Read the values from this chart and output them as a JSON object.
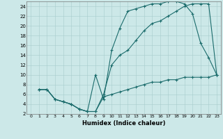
{
  "xlabel": "Humidex (Indice chaleur)",
  "ylabel": "",
  "bg_color": "#cce8e8",
  "line_color": "#1a6b6b",
  "xlim": [
    -0.5,
    23.5
  ],
  "ylim": [
    2,
    25
  ],
  "xticks": [
    0,
    1,
    2,
    3,
    4,
    5,
    6,
    7,
    8,
    9,
    10,
    11,
    12,
    13,
    14,
    15,
    16,
    17,
    18,
    19,
    20,
    21,
    22,
    23
  ],
  "yticks": [
    2,
    4,
    6,
    8,
    10,
    12,
    14,
    16,
    18,
    20,
    22,
    24
  ],
  "line1_x": [
    1,
    2,
    3,
    4,
    5,
    6,
    7,
    8,
    9,
    10,
    11,
    12,
    13,
    14,
    15,
    16,
    17,
    18,
    19,
    20,
    21,
    22,
    23
  ],
  "line1_y": [
    7,
    7,
    5,
    4.5,
    4,
    3,
    2.5,
    10,
    5,
    15,
    19.5,
    23,
    23.5,
    24,
    24.5,
    24.5,
    25,
    25,
    24.5,
    22.5,
    16.5,
    13.5,
    10
  ],
  "line2_x": [
    1,
    2,
    3,
    4,
    5,
    6,
    7,
    8,
    9,
    10,
    11,
    12,
    13,
    14,
    15,
    16,
    17,
    18,
    19,
    20,
    21,
    22,
    23
  ],
  "line2_y": [
    7,
    7,
    5,
    4.5,
    4,
    3,
    2.5,
    2.5,
    6,
    12,
    14,
    15,
    17,
    19,
    20.5,
    21,
    22,
    23,
    24,
    24.5,
    24.5,
    24.5,
    10
  ],
  "line3_x": [
    1,
    2,
    3,
    4,
    5,
    6,
    7,
    8,
    9,
    10,
    11,
    12,
    13,
    14,
    15,
    16,
    17,
    18,
    19,
    20,
    21,
    22,
    23
  ],
  "line3_y": [
    7,
    7,
    5,
    4.5,
    4,
    3,
    2.5,
    2.5,
    5.5,
    6,
    6.5,
    7,
    7.5,
    8,
    8.5,
    8.5,
    9,
    9,
    9.5,
    9.5,
    9.5,
    9.5,
    10
  ]
}
